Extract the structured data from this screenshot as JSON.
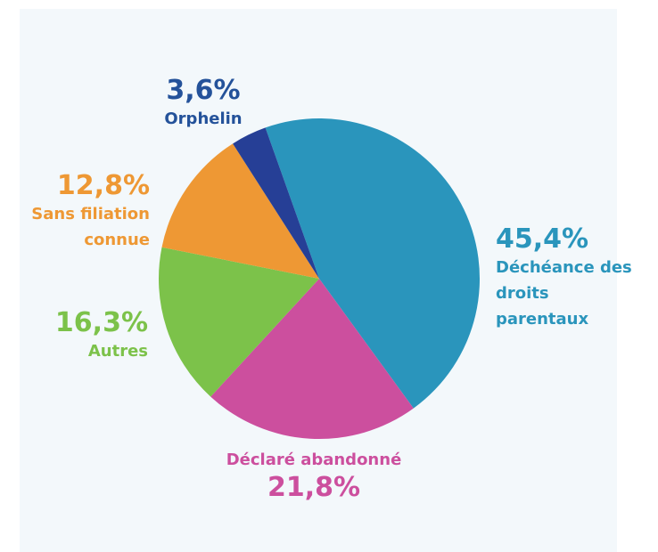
{
  "chart_data": {
    "type": "pie",
    "categories": [
      "Déchéance des\ndroits\nparentaux",
      "Déclaré abandonné",
      "Autres",
      "Sans filiation\nconnue",
      "Orphelin"
    ],
    "values": [
      45.4,
      21.8,
      16.3,
      12.8,
      3.6
    ],
    "value_labels": [
      "45,4%",
      "21,8%",
      "16,3%",
      "12,8%",
      "3,6%"
    ],
    "colors": [
      "#2a95bc",
      "#cc4f9e",
      "#7cc24a",
      "#ee9834",
      "#263f96"
    ]
  }
}
